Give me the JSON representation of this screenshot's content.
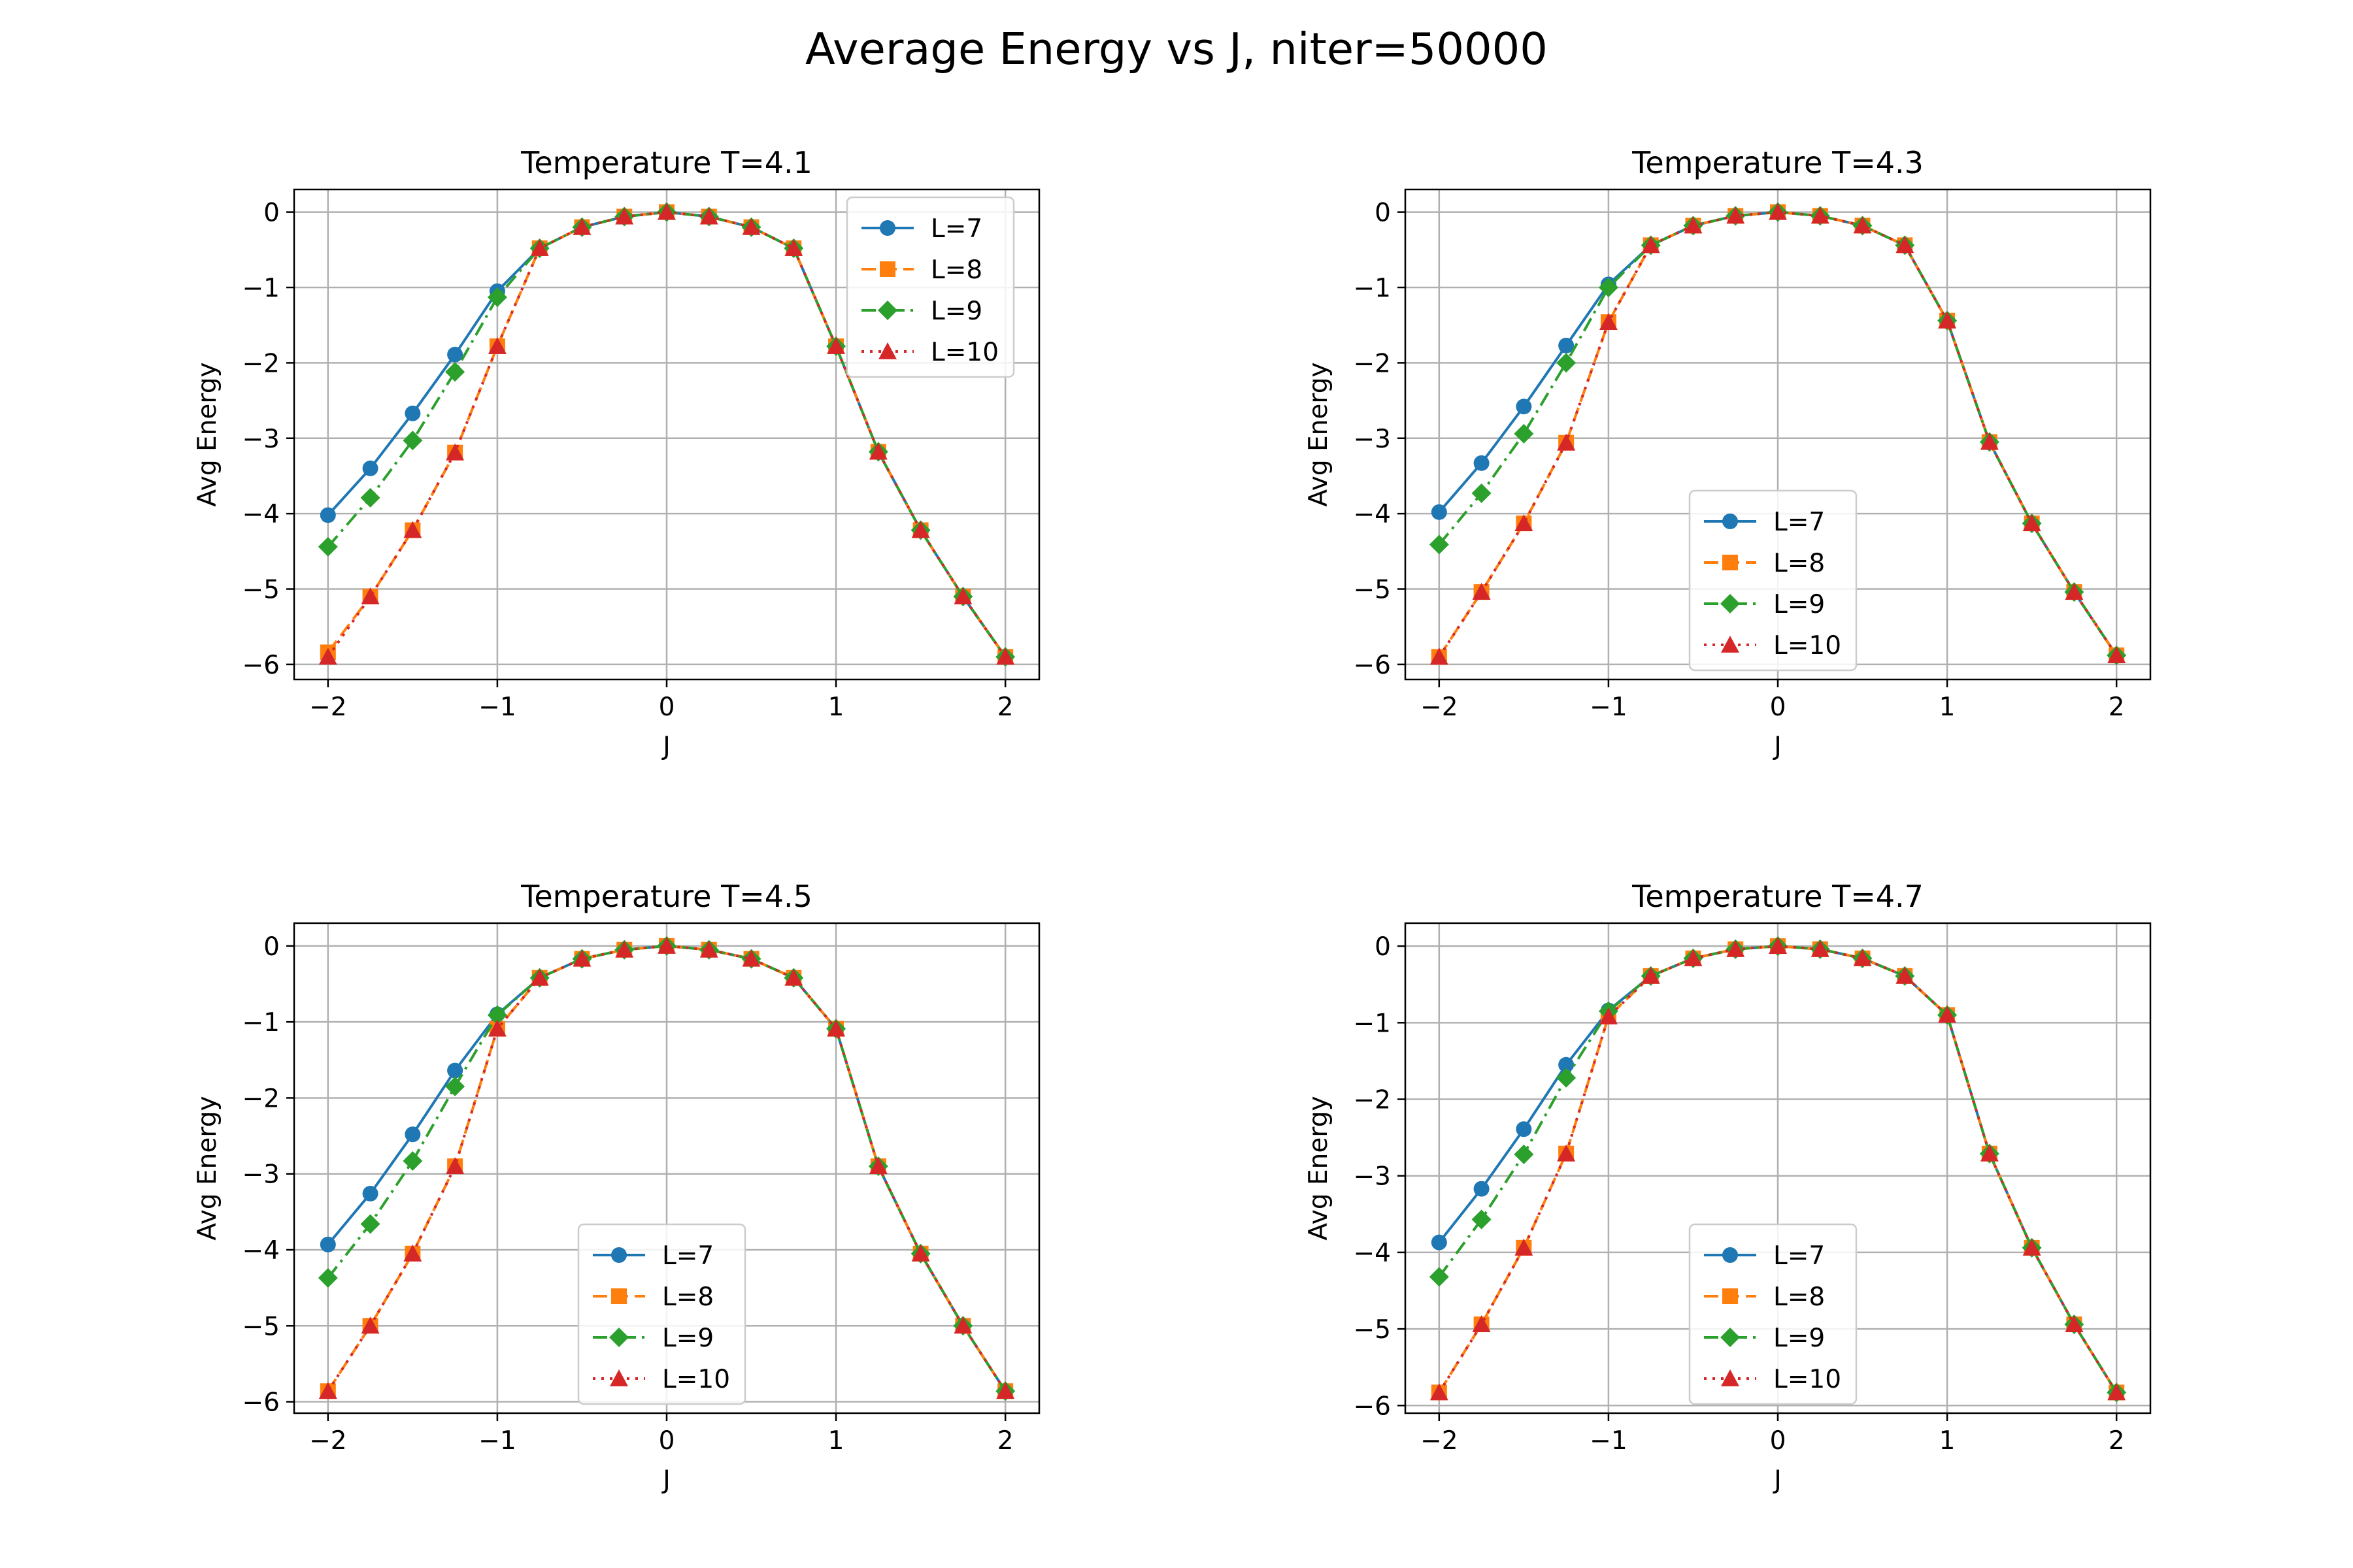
{
  "figure_title": "Average Energy vs J, niter=50000",
  "colors": {
    "L7": "#1f77b4",
    "L8": "#ff7f0e",
    "L9": "#2ca02c",
    "L10": "#d62728",
    "grid": "#b0b0b0"
  },
  "chart_data": [
    {
      "type": "line",
      "title": "Temperature T=4.1",
      "xlabel": "J",
      "ylabel": "Avg Energy",
      "xlim": [
        -2.2,
        2.2
      ],
      "ylim": [
        -6.2,
        0.3
      ],
      "xticks": [
        -2,
        -1,
        0,
        1,
        2
      ],
      "yticks": [
        0,
        -1,
        -2,
        -3,
        -4,
        -5,
        -6
      ],
      "grid": true,
      "legend": "top-right",
      "x": [
        -2,
        -1.75,
        -1.5,
        -1.25,
        -1,
        -0.75,
        -0.5,
        -0.25,
        0,
        0.25,
        0.5,
        0.75,
        1,
        1.25,
        1.5,
        1.75,
        2
      ],
      "series": [
        {
          "name": "L=7",
          "marker": "circle",
          "linestyle": "solid",
          "values": [
            -4.02,
            -3.4,
            -2.67,
            -1.89,
            -1.05,
            -0.48,
            -0.2,
            -0.06,
            0,
            -0.06,
            -0.2,
            -0.48,
            -1.78,
            -3.18,
            -4.22,
            -5.1,
            -5.9
          ]
        },
        {
          "name": "L=8",
          "marker": "square",
          "linestyle": "dashed",
          "values": [
            -5.84,
            -5.1,
            -4.22,
            -3.19,
            -1.78,
            -0.48,
            -0.2,
            -0.06,
            0,
            -0.06,
            -0.2,
            -0.48,
            -1.78,
            -3.18,
            -4.22,
            -5.1,
            -5.9
          ]
        },
        {
          "name": "L=9",
          "marker": "diamond",
          "linestyle": "dashdot",
          "values": [
            -4.44,
            -3.79,
            -3.03,
            -2.12,
            -1.13,
            -0.48,
            -0.2,
            -0.06,
            0,
            -0.06,
            -0.2,
            -0.48,
            -1.78,
            -3.18,
            -4.22,
            -5.1,
            -5.9
          ]
        },
        {
          "name": "L=10",
          "marker": "triangle",
          "linestyle": "dotted",
          "values": [
            -5.9,
            -5.1,
            -4.22,
            -3.19,
            -1.78,
            -0.48,
            -0.2,
            -0.06,
            0,
            -0.06,
            -0.2,
            -0.48,
            -1.78,
            -3.18,
            -4.22,
            -5.1,
            -5.9
          ]
        }
      ]
    },
    {
      "type": "line",
      "title": "Temperature T=4.3",
      "xlabel": "J",
      "ylabel": "Avg Energy",
      "xlim": [
        -2.2,
        2.2
      ],
      "ylim": [
        -6.2,
        0.3
      ],
      "xticks": [
        -2,
        -1,
        0,
        1,
        2
      ],
      "yticks": [
        0,
        -1,
        -2,
        -3,
        -4,
        -5,
        -6
      ],
      "grid": true,
      "legend": "lower-center",
      "x": [
        -2,
        -1.75,
        -1.5,
        -1.25,
        -1,
        -0.75,
        -0.5,
        -0.25,
        0,
        0.25,
        0.5,
        0.75,
        1,
        1.25,
        1.5,
        1.75,
        2
      ],
      "series": [
        {
          "name": "L=7",
          "marker": "circle",
          "linestyle": "solid",
          "values": [
            -3.98,
            -3.33,
            -2.58,
            -1.77,
            -0.96,
            -0.44,
            -0.18,
            -0.05,
            0,
            -0.05,
            -0.18,
            -0.44,
            -1.44,
            -3.05,
            -4.13,
            -5.04,
            -5.88
          ]
        },
        {
          "name": "L=8",
          "marker": "square",
          "linestyle": "dashed",
          "values": [
            -5.9,
            -5.04,
            -4.13,
            -3.06,
            -1.46,
            -0.44,
            -0.18,
            -0.05,
            0,
            -0.05,
            -0.18,
            -0.44,
            -1.44,
            -3.05,
            -4.13,
            -5.04,
            -5.88
          ]
        },
        {
          "name": "L=9",
          "marker": "diamond",
          "linestyle": "dashdot",
          "values": [
            -4.41,
            -3.73,
            -2.94,
            -2.0,
            -1.0,
            -0.44,
            -0.18,
            -0.05,
            0,
            -0.05,
            -0.18,
            -0.44,
            -1.44,
            -3.05,
            -4.13,
            -5.04,
            -5.88
          ]
        },
        {
          "name": "L=10",
          "marker": "triangle",
          "linestyle": "dotted",
          "values": [
            -5.9,
            -5.04,
            -4.13,
            -3.06,
            -1.46,
            -0.44,
            -0.18,
            -0.05,
            0,
            -0.05,
            -0.18,
            -0.44,
            -1.44,
            -3.05,
            -4.13,
            -5.04,
            -5.88
          ]
        }
      ]
    },
    {
      "type": "line",
      "title": "Temperature T=4.5",
      "xlabel": "J",
      "ylabel": "Avg Energy",
      "xlim": [
        -2.2,
        2.2
      ],
      "ylim": [
        -6.15,
        0.3
      ],
      "xticks": [
        -2,
        -1,
        0,
        1,
        2
      ],
      "yticks": [
        0,
        -1,
        -2,
        -3,
        -4,
        -5,
        -6
      ],
      "grid": true,
      "legend": "lower-center",
      "x": [
        -2,
        -1.75,
        -1.5,
        -1.25,
        -1,
        -0.75,
        -0.5,
        -0.25,
        0,
        0.25,
        0.5,
        0.75,
        1,
        1.25,
        1.5,
        1.75,
        2
      ],
      "series": [
        {
          "name": "L=7",
          "marker": "circle",
          "linestyle": "solid",
          "values": [
            -3.93,
            -3.26,
            -2.48,
            -1.64,
            -0.9,
            -0.42,
            -0.17,
            -0.05,
            0,
            -0.05,
            -0.17,
            -0.42,
            -1.09,
            -2.9,
            -4.05,
            -5.0,
            -5.86
          ]
        },
        {
          "name": "L=8",
          "marker": "square",
          "linestyle": "dashed",
          "values": [
            -5.86,
            -5.0,
            -4.05,
            -2.9,
            -1.09,
            -0.42,
            -0.17,
            -0.05,
            0,
            -0.05,
            -0.17,
            -0.42,
            -1.09,
            -2.9,
            -4.05,
            -5.0,
            -5.86
          ]
        },
        {
          "name": "L=9",
          "marker": "diamond",
          "linestyle": "dashdot",
          "values": [
            -4.37,
            -3.66,
            -2.83,
            -1.85,
            -0.91,
            -0.42,
            -0.17,
            -0.05,
            0,
            -0.05,
            -0.17,
            -0.42,
            -1.09,
            -2.9,
            -4.05,
            -5.0,
            -5.86
          ]
        },
        {
          "name": "L=10",
          "marker": "triangle",
          "linestyle": "dotted",
          "values": [
            -5.86,
            -5.0,
            -4.05,
            -2.9,
            -1.09,
            -0.42,
            -0.17,
            -0.05,
            0,
            -0.05,
            -0.17,
            -0.42,
            -1.09,
            -2.9,
            -4.05,
            -5.0,
            -5.86
          ]
        }
      ]
    },
    {
      "type": "line",
      "title": "Temperature T=4.7",
      "xlabel": "J",
      "ylabel": "Avg Energy",
      "xlim": [
        -2.2,
        2.2
      ],
      "ylim": [
        -6.1,
        0.3
      ],
      "xticks": [
        -2,
        -1,
        0,
        1,
        2
      ],
      "yticks": [
        0,
        -1,
        -2,
        -3,
        -4,
        -5,
        -6
      ],
      "grid": true,
      "legend": "lower-center",
      "x": [
        -2,
        -1.75,
        -1.5,
        -1.25,
        -1,
        -0.75,
        -0.5,
        -0.25,
        0,
        0.25,
        0.5,
        0.75,
        1,
        1.25,
        1.5,
        1.75,
        2
      ],
      "series": [
        {
          "name": "L=7",
          "marker": "circle",
          "linestyle": "solid",
          "values": [
            -3.87,
            -3.17,
            -2.39,
            -1.55,
            -0.84,
            -0.39,
            -0.16,
            -0.04,
            0,
            -0.04,
            -0.16,
            -0.39,
            -0.9,
            -2.71,
            -3.94,
            -4.94,
            -5.83
          ]
        },
        {
          "name": "L=8",
          "marker": "square",
          "linestyle": "dashed",
          "values": [
            -5.83,
            -4.94,
            -3.94,
            -2.71,
            -0.92,
            -0.39,
            -0.16,
            -0.04,
            0,
            -0.04,
            -0.16,
            -0.39,
            -0.9,
            -2.71,
            -3.94,
            -4.94,
            -5.83
          ]
        },
        {
          "name": "L=9",
          "marker": "diamond",
          "linestyle": "dashdot",
          "values": [
            -4.32,
            -3.57,
            -2.72,
            -1.72,
            -0.85,
            -0.39,
            -0.16,
            -0.04,
            0,
            -0.04,
            -0.16,
            -0.39,
            -0.9,
            -2.71,
            -3.94,
            -4.94,
            -5.83
          ]
        },
        {
          "name": "L=10",
          "marker": "triangle",
          "linestyle": "dotted",
          "values": [
            -5.83,
            -4.94,
            -3.94,
            -2.71,
            -0.92,
            -0.39,
            -0.16,
            -0.04,
            0,
            -0.04,
            -0.16,
            -0.39,
            -0.9,
            -2.71,
            -3.94,
            -4.94,
            -5.83
          ]
        }
      ]
    }
  ]
}
